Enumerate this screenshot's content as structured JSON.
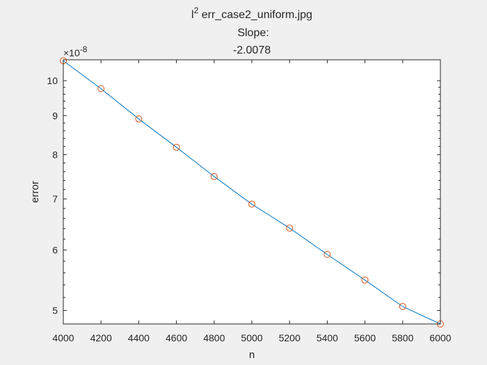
{
  "chart_data": {
    "type": "line",
    "title": {
      "prefix": "l",
      "superscript": "2",
      "rest": " err_case2_uniform.jpg",
      "line2": "Slope:",
      "line3": "-2.0078"
    },
    "xlabel": "n",
    "ylabel": "error",
    "x_ticks": [
      "4000",
      "4200",
      "4400",
      "4600",
      "4800",
      "5000",
      "5200",
      "5400",
      "5600",
      "5800",
      "6000"
    ],
    "y_ticks": [
      "5",
      "6",
      "7",
      "8",
      "9",
      "10"
    ],
    "y_multiplier": {
      "base": "×10",
      "exponent": "-8"
    },
    "y_scale": "log",
    "xlim": [
      4000,
      6000
    ],
    "ylim": [
      4.8e-08,
      1.065e-07
    ],
    "grid": false,
    "series": [
      {
        "x": [
          4000,
          4200,
          4400,
          4600,
          4800,
          5000,
          5200,
          5400,
          5600,
          5800,
          6000
        ],
        "y": [
          1.062e-07,
          9.76e-08,
          8.91e-08,
          8.18e-08,
          7.49e-08,
          6.89e-08,
          6.41e-08,
          5.92e-08,
          5.48e-08,
          5.06e-08,
          4.8e-08
        ],
        "line_color": "#0072bd",
        "marker": "circle",
        "marker_color": "#d95319"
      }
    ]
  }
}
